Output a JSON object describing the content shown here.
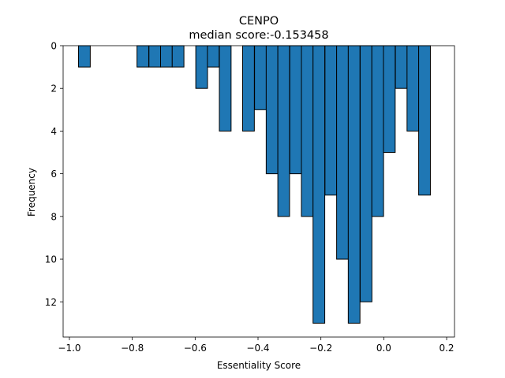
{
  "chart_data": {
    "type": "bar",
    "title": "CENPO",
    "subtitle": "median score:-0.153458",
    "xlabel": "Essentiality Score",
    "ylabel": "Frequency",
    "y_axis_inverted": true,
    "bar_color": "#1f77b4",
    "edge_color": "#000000",
    "bin_width": 0.0373,
    "xlim": [
      -1.02,
      0.225
    ],
    "ylim": [
      0,
      13.65
    ],
    "x_ticks": [
      -1.0,
      -0.8,
      -0.6,
      -0.4,
      -0.2,
      0.0,
      0.2
    ],
    "x_tick_labels": [
      "−1.0",
      "−0.8",
      "−0.6",
      "−0.4",
      "−0.2",
      "0.0",
      "0.2"
    ],
    "y_ticks": [
      0,
      2,
      4,
      6,
      8,
      10,
      12
    ],
    "y_tick_labels": [
      "0",
      "2",
      "4",
      "6",
      "8",
      "10",
      "12"
    ],
    "bins": [
      {
        "x": -0.971,
        "count": 1
      },
      {
        "x": -0.934,
        "count": 0
      },
      {
        "x": -0.897,
        "count": 0
      },
      {
        "x": -0.859,
        "count": 0
      },
      {
        "x": -0.822,
        "count": 0
      },
      {
        "x": -0.785,
        "count": 1
      },
      {
        "x": -0.747,
        "count": 1
      },
      {
        "x": -0.71,
        "count": 1
      },
      {
        "x": -0.673,
        "count": 1
      },
      {
        "x": -0.635,
        "count": 0
      },
      {
        "x": -0.598,
        "count": 2
      },
      {
        "x": -0.561,
        "count": 1
      },
      {
        "x": -0.523,
        "count": 4
      },
      {
        "x": -0.486,
        "count": 0
      },
      {
        "x": -0.449,
        "count": 4
      },
      {
        "x": -0.411,
        "count": 3
      },
      {
        "x": -0.374,
        "count": 6
      },
      {
        "x": -0.337,
        "count": 8
      },
      {
        "x": -0.299,
        "count": 6
      },
      {
        "x": -0.262,
        "count": 8
      },
      {
        "x": -0.225,
        "count": 13
      },
      {
        "x": -0.187,
        "count": 7
      },
      {
        "x": -0.15,
        "count": 10
      },
      {
        "x": -0.113,
        "count": 13
      },
      {
        "x": -0.075,
        "count": 12
      },
      {
        "x": -0.038,
        "count": 8
      },
      {
        "x": -0.001,
        "count": 5
      },
      {
        "x": 0.037,
        "count": 2
      },
      {
        "x": 0.074,
        "count": 4
      },
      {
        "x": 0.111,
        "count": 7
      }
    ]
  }
}
